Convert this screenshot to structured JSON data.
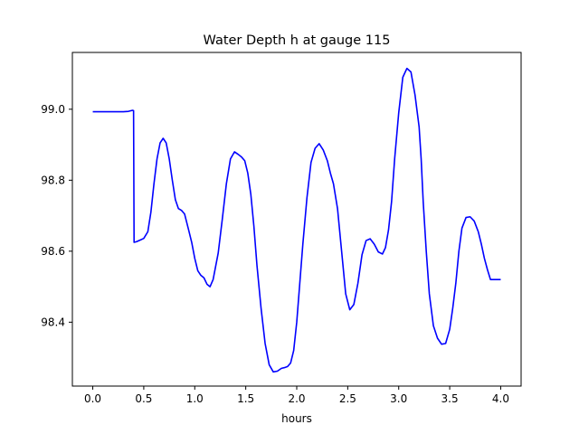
{
  "chart_data": {
    "type": "line",
    "title": "Water Depth h at gauge 115",
    "xlabel": "hours",
    "ylabel": "",
    "xlim": [
      -0.2,
      4.2
    ],
    "ylim": [
      98.22,
      99.16
    ],
    "xticks": [
      "0.0",
      "0.5",
      "1.0",
      "1.5",
      "2.0",
      "2.5",
      "3.0",
      "3.5",
      "4.0"
    ],
    "yticks": [
      "98.4",
      "98.6",
      "98.8",
      "99.0"
    ],
    "grid": false,
    "line_color": "#0000ff",
    "series": [
      {
        "x": [
          0.0,
          0.1,
          0.2,
          0.3,
          0.35,
          0.39,
          0.4,
          0.405,
          0.43,
          0.47,
          0.5,
          0.54,
          0.57,
          0.6,
          0.63,
          0.66,
          0.69,
          0.72,
          0.75,
          0.78,
          0.81,
          0.84,
          0.87,
          0.9,
          0.94,
          0.97,
          1.0,
          1.03,
          1.06,
          1.09,
          1.12,
          1.15,
          1.18,
          1.2,
          1.23,
          1.27,
          1.31,
          1.35,
          1.39,
          1.43,
          1.46,
          1.49,
          1.52,
          1.55,
          1.58,
          1.61,
          1.65,
          1.69,
          1.73,
          1.77,
          1.81,
          1.85,
          1.88,
          1.91,
          1.94,
          1.97,
          2.0,
          2.03,
          2.06,
          2.1,
          2.14,
          2.18,
          2.22,
          2.26,
          2.3,
          2.33,
          2.36,
          2.4,
          2.44,
          2.48,
          2.52,
          2.56,
          2.6,
          2.64,
          2.68,
          2.72,
          2.76,
          2.8,
          2.84,
          2.87,
          2.9,
          2.93,
          2.96,
          3.0,
          3.04,
          3.08,
          3.12,
          3.16,
          3.2,
          3.22,
          3.24,
          3.27,
          3.3,
          3.34,
          3.38,
          3.42,
          3.46,
          3.5,
          3.53,
          3.56,
          3.59,
          3.62,
          3.66,
          3.7,
          3.74,
          3.78,
          3.81,
          3.84,
          3.87,
          3.9,
          3.93,
          3.96,
          4.0
        ],
        "y": [
          98.993,
          98.993,
          98.993,
          98.993,
          98.994,
          98.997,
          98.996,
          98.625,
          98.627,
          98.632,
          98.636,
          98.655,
          98.71,
          98.79,
          98.86,
          98.905,
          98.918,
          98.905,
          98.86,
          98.8,
          98.745,
          98.72,
          98.715,
          98.705,
          98.66,
          98.625,
          98.58,
          98.545,
          98.532,
          98.525,
          98.507,
          98.5,
          98.52,
          98.55,
          98.595,
          98.69,
          98.79,
          98.86,
          98.88,
          98.872,
          98.865,
          98.855,
          98.82,
          98.76,
          98.67,
          98.56,
          98.44,
          98.34,
          98.28,
          98.26,
          98.262,
          98.27,
          98.272,
          98.275,
          98.285,
          98.32,
          98.4,
          98.51,
          98.62,
          98.75,
          98.85,
          98.89,
          98.903,
          98.885,
          98.855,
          98.82,
          98.79,
          98.72,
          98.6,
          98.48,
          98.435,
          98.45,
          98.51,
          98.59,
          98.63,
          98.635,
          98.62,
          98.598,
          98.592,
          98.61,
          98.66,
          98.74,
          98.86,
          98.99,
          99.09,
          99.115,
          99.105,
          99.04,
          98.95,
          98.86,
          98.74,
          98.6,
          98.48,
          98.39,
          98.355,
          98.338,
          98.34,
          98.38,
          98.44,
          98.51,
          98.6,
          98.665,
          98.695,
          98.697,
          98.685,
          98.655,
          98.62,
          98.58,
          98.548,
          98.52,
          98.52,
          98.52,
          98.52
        ]
      }
    ]
  }
}
